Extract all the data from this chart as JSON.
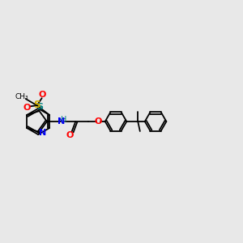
{
  "bg_color": "#e8e8e8",
  "bond_color": "#000000",
  "bond_width": 1.3,
  "S_sulfonyl_color": "#ccaa00",
  "N_color": "#0000ee",
  "O_color": "#ff0000",
  "S_thiazole_color": "#008080",
  "NH_color": "#008080",
  "figsize": [
    3.0,
    3.0
  ],
  "dpi": 100,
  "xlim": [
    0,
    14
  ],
  "ylim": [
    0,
    10
  ]
}
